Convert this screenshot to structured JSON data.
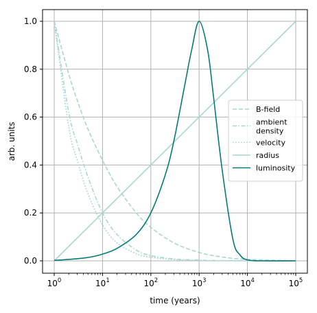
{
  "chart_data": {
    "type": "line",
    "xlabel": "time (years)",
    "ylabel": "arb. units",
    "xscale": "log",
    "xlim": [
      1,
      100000
    ],
    "ylim": [
      0,
      1
    ],
    "grid": true,
    "legend_position": "right",
    "x_ticks": [
      {
        "value": 1,
        "base": "10",
        "exp": "0"
      },
      {
        "value": 10,
        "base": "10",
        "exp": "1"
      },
      {
        "value": 100,
        "base": "10",
        "exp": "2"
      },
      {
        "value": 1000,
        "base": "10",
        "exp": "3"
      },
      {
        "value": 10000,
        "base": "10",
        "exp": "4"
      },
      {
        "value": 100000,
        "base": "10",
        "exp": "5"
      }
    ],
    "y_ticks": [
      {
        "value": 0,
        "label": "0.0"
      },
      {
        "value": 0.2,
        "label": "0.2"
      },
      {
        "value": 0.4,
        "label": "0.4"
      },
      {
        "value": 0.6,
        "label": "0.6"
      },
      {
        "value": 0.8,
        "label": "0.8"
      },
      {
        "value": 1.0,
        "label": "1.0"
      }
    ],
    "series": [
      {
        "name": "B-field",
        "color": "#a8d5d2",
        "style": "dashed",
        "x": [
          1,
          2,
          3,
          5,
          10,
          20,
          50,
          100,
          300,
          1000,
          3000,
          10000,
          100000
        ],
        "y": [
          1.0,
          0.78,
          0.67,
          0.55,
          0.42,
          0.31,
          0.2,
          0.14,
          0.075,
          0.035,
          0.016,
          0.006,
          0.0005
        ]
      },
      {
        "name": "ambient\ndensity",
        "color": "#a8d5d2",
        "style": "dashdot",
        "x": [
          1,
          2,
          3,
          5,
          10,
          20,
          50,
          100,
          300,
          1000,
          3000,
          10000,
          100000
        ],
        "y": [
          1.0,
          0.62,
          0.49,
          0.35,
          0.2,
          0.11,
          0.045,
          0.022,
          0.008,
          0.003,
          0.0012,
          0.0004,
          0.0
        ]
      },
      {
        "name": "velocity",
        "color": "#a8d5d2",
        "style": "dotted",
        "x": [
          1,
          2,
          3,
          5,
          10,
          20,
          50,
          100,
          300,
          1000,
          10000,
          100000
        ],
        "y": [
          1.0,
          0.56,
          0.42,
          0.28,
          0.15,
          0.075,
          0.03,
          0.015,
          0.005,
          0.0015,
          0.0002,
          0.0
        ]
      },
      {
        "name": "radius",
        "color": "#a8d5d2",
        "style": "solid",
        "x": [
          1,
          100000
        ],
        "y": [
          0.0,
          1.0
        ]
      },
      {
        "name": "luminosity",
        "color": "#037a74",
        "style": "solid",
        "x": [
          1,
          2,
          5,
          10,
          20,
          50,
          100,
          200,
          300,
          500,
          700,
          1000,
          1500,
          2000,
          3000,
          5000,
          7000,
          10000,
          20000,
          100000
        ],
        "y": [
          0.002,
          0.006,
          0.014,
          0.028,
          0.052,
          0.11,
          0.2,
          0.36,
          0.5,
          0.73,
          0.88,
          1.0,
          0.88,
          0.68,
          0.38,
          0.09,
          0.025,
          0.004,
          0.0,
          0.0
        ]
      }
    ]
  }
}
